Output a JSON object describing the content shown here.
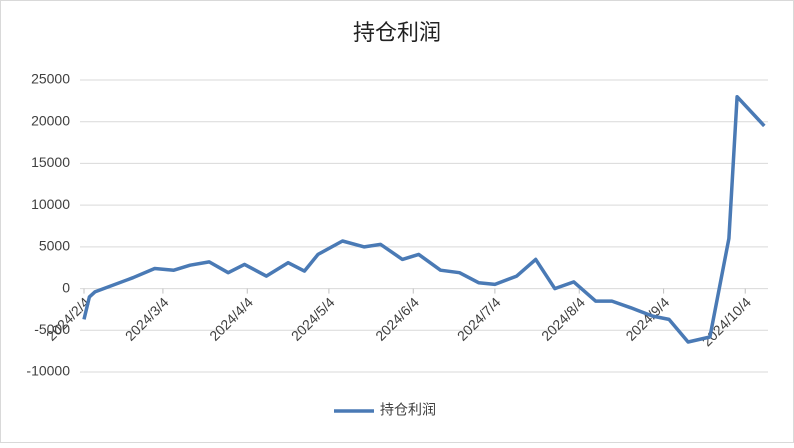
{
  "chart_data": {
    "type": "line",
    "title": "持仓利润",
    "x": [
      "2024/2/4",
      "2024/2/6",
      "2024/2/8",
      "2024/2/22",
      "2024/3/1",
      "2024/3/8",
      "2024/3/14",
      "2024/3/21",
      "2024/3/28",
      "2024/4/3",
      "2024/4/11",
      "2024/4/19",
      "2024/4/25",
      "2024/4/30",
      "2024/5/9",
      "2024/5/17",
      "2024/5/23",
      "2024/5/31",
      "2024/6/6",
      "2024/6/14",
      "2024/6/21",
      "2024/6/28",
      "2024/7/4",
      "2024/7/12",
      "2024/7/19",
      "2024/7/26",
      "2024/8/2",
      "2024/8/10",
      "2024/8/16",
      "2024/8/23",
      "2024/8/31",
      "2024/9/6",
      "2024/9/13",
      "2024/9/21",
      "2024/9/28",
      "2024/10/1",
      "2024/10/11"
    ],
    "series": [
      {
        "name": "持仓利润",
        "color": "#4a7ab5",
        "values": [
          -3700,
          -1000,
          -400,
          1300,
          2400,
          2200,
          2800,
          3200,
          1900,
          2900,
          1500,
          3100,
          2100,
          4100,
          5700,
          5000,
          5300,
          3500,
          4100,
          2200,
          1900,
          700,
          500,
          1500,
          3500,
          0,
          800,
          -1500,
          -1500,
          -2300,
          -3300,
          -3700,
          -6400,
          -5800,
          6000,
          23000,
          19500
        ]
      }
    ],
    "xlim": [
      "2024/2/4",
      "2024/10/12"
    ],
    "xticks": [
      "2024/2/4",
      "2024/3/4",
      "2024/4/4",
      "2024/5/4",
      "2024/6/4",
      "2024/7/4",
      "2024/8/4",
      "2024/9/4",
      "2024/10/4"
    ],
    "ylim": [
      -10000,
      25000
    ],
    "yticks": [
      -10000,
      -5000,
      0,
      5000,
      10000,
      15000,
      20000,
      25000
    ],
    "grid": true
  }
}
